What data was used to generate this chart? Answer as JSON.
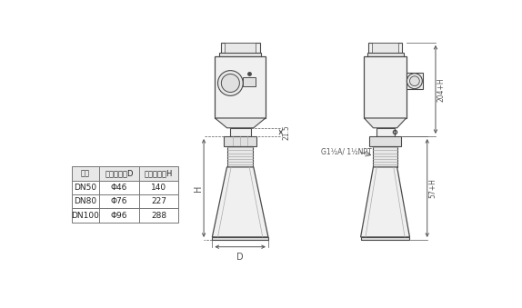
{
  "bg_color": "#ffffff",
  "line_color": "#4a4a4a",
  "gray1": "#cccccc",
  "gray2": "#aaaaaa",
  "gray3": "#888888",
  "gray_fill": "#f0f0f0",
  "gray_fill2": "#e8e8e8",
  "gray_fill3": "#e0e0e0",
  "gray_fill4": "#d8d8d8",
  "table_border": "#777777",
  "text_color": "#222222",
  "dim_color": "#555555",
  "table_headers": [
    "法兰",
    "嗅射口直径D",
    "嗅射山高度H"
  ],
  "table_rows": [
    [
      "DN50",
      "Φ46",
      "140"
    ],
    [
      "DN80",
      "Φ76",
      "227"
    ],
    [
      "DN100",
      "Φ96",
      "288"
    ]
  ],
  "dim_215": "21.5",
  "dim_H": "H",
  "dim_D": "D",
  "dim_204H": "204+H",
  "dim_57H": "57+H",
  "dim_thread": "G1½A/ 1½NPT"
}
